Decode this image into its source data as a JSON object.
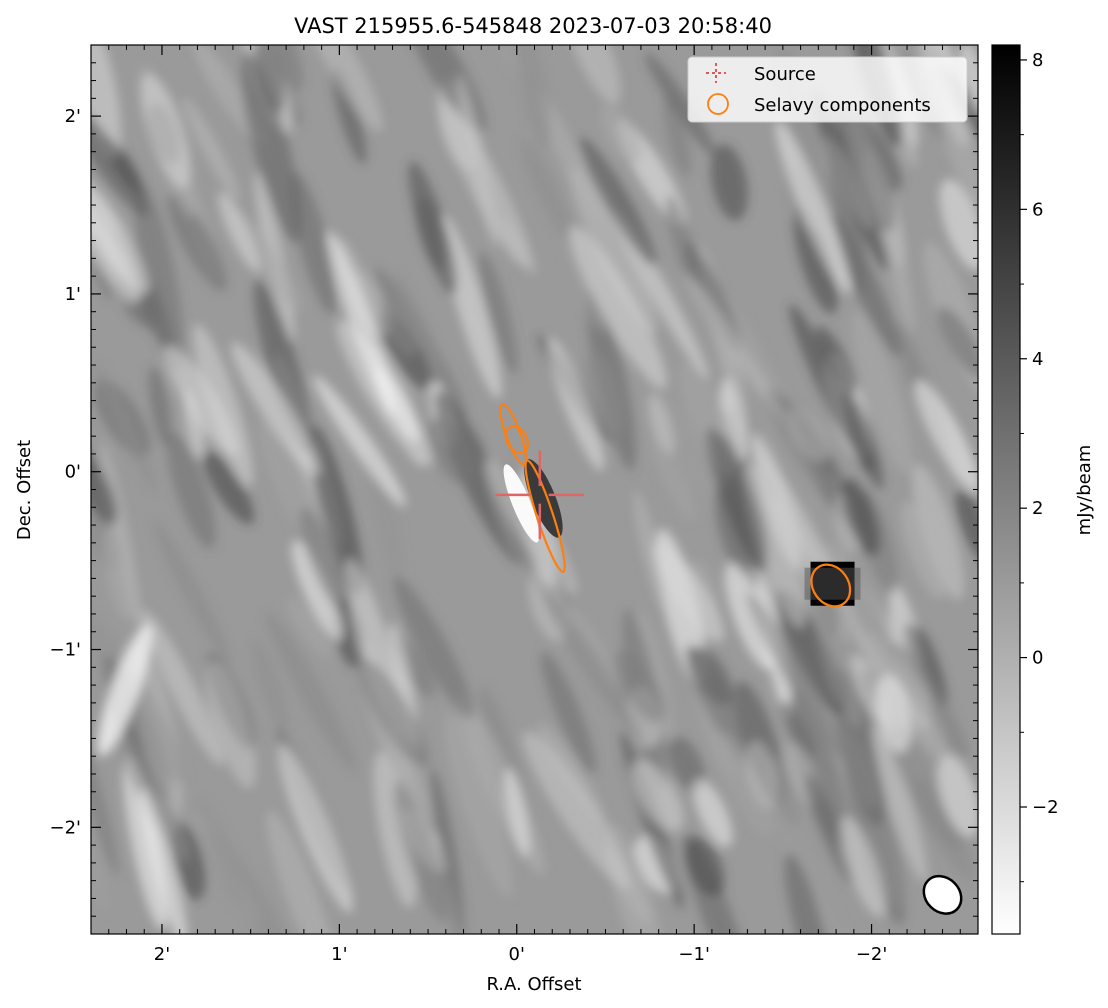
{
  "chart_data": {
    "type": "heatmap",
    "title": "VAST 215955.6-545848 2023-07-03 20:58:40",
    "xlabel": "R.A. Offset",
    "ylabel": "Dec. Offset",
    "colorbar_label": "mJy/beam",
    "xlim": [
      2.4,
      -2.6
    ],
    "ylim": [
      -2.6,
      2.4
    ],
    "x_ticks": [
      {
        "value": 2,
        "label": "2'"
      },
      {
        "value": 1,
        "label": "1'"
      },
      {
        "value": 0,
        "label": "0'"
      },
      {
        "value": -1,
        "label": "−1'"
      },
      {
        "value": -2,
        "label": "−2'"
      }
    ],
    "y_ticks": [
      {
        "value": 2,
        "label": "2'"
      },
      {
        "value": 1,
        "label": "1'"
      },
      {
        "value": 0,
        "label": "0'"
      },
      {
        "value": -1,
        "label": "−1'"
      },
      {
        "value": -2,
        "label": "−2'"
      }
    ],
    "colorbar": {
      "vmin": -3.7,
      "vmax": 8.2,
      "ticks": [
        {
          "value": -2,
          "label": "−2"
        },
        {
          "value": 0,
          "label": "0"
        },
        {
          "value": 2,
          "label": "2"
        },
        {
          "value": 4,
          "label": "4"
        },
        {
          "value": 6,
          "label": "6"
        },
        {
          "value": 8,
          "label": "8"
        }
      ],
      "colormap": "gray_r"
    },
    "legend": {
      "placement": "top-right",
      "entries": [
        {
          "label": "Source",
          "marker": "cross",
          "color": "#d62728"
        },
        {
          "label": "Selavy components",
          "marker": "circle",
          "color": "#ff7f0e"
        }
      ]
    },
    "source": {
      "x": -0.13,
      "y": -0.13,
      "color": "#e06666"
    },
    "selavy_components": [
      {
        "x": 0.02,
        "y": 0.21,
        "semi_major": 0.18,
        "semi_minor": 0.04,
        "pa": 20,
        "color": "#ff7f0e"
      },
      {
        "x": 0.0,
        "y": 0.18,
        "semi_major": 0.08,
        "semi_minor": 0.055,
        "pa": 30,
        "color": "#ff7f0e"
      },
      {
        "x": -0.16,
        "y": -0.25,
        "semi_major": 0.33,
        "semi_minor": 0.045,
        "pa": 18,
        "color": "#ff7f0e"
      },
      {
        "x": -1.77,
        "y": -0.64,
        "semi_major": 0.125,
        "semi_minor": 0.1,
        "pa": 35,
        "color": "#ff7f0e"
      }
    ],
    "beam": {
      "x": -2.4,
      "y": -2.38,
      "semi_major": 0.115,
      "semi_minor": 0.095,
      "pa": 45
    },
    "bright_sources": [
      {
        "x": -1.78,
        "y": -0.63,
        "peak": 8.2
      },
      {
        "x": -0.15,
        "y": -0.15,
        "peak": 5.5
      }
    ]
  }
}
